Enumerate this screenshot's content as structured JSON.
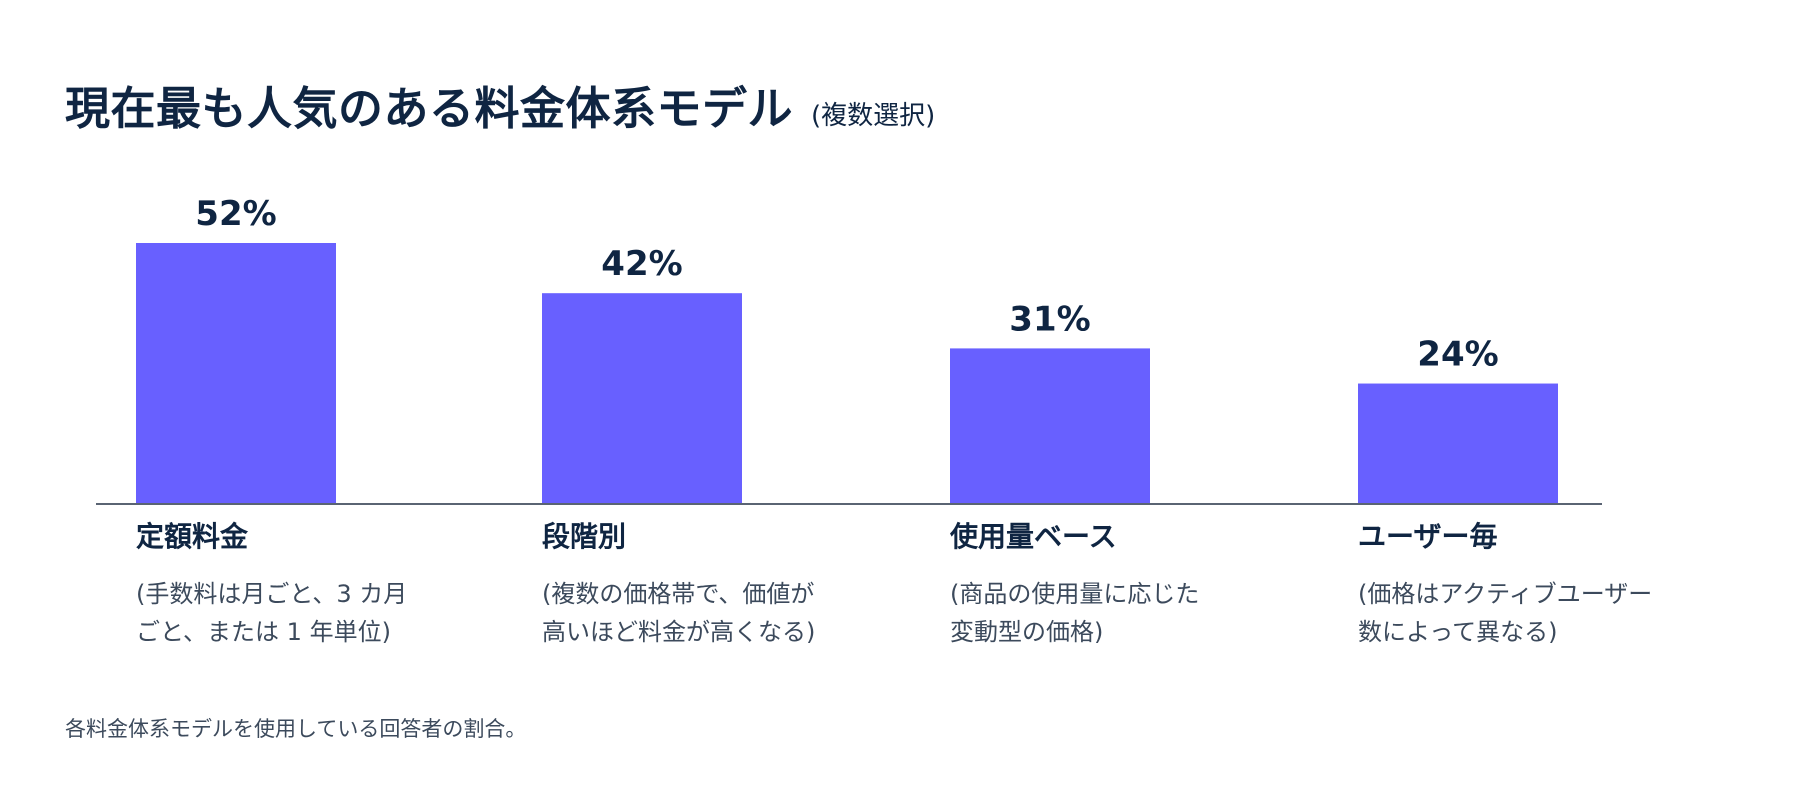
{
  "header": {
    "title": "現在最も人気のある料金体系モデル",
    "subtitle": "(複数選択)"
  },
  "chart_data": {
    "type": "bar",
    "categories": [
      "定額料金",
      "段階別",
      "使用量ベース",
      "ユーザー毎"
    ],
    "descriptions": [
      [
        "(手数料は月ごと、3 カ月",
        "ごと、または 1 年単位)"
      ],
      [
        "(複数の価格帯で、価値が",
        "高いほど料金が高くなる)"
      ],
      [
        "(商品の使用量に応じた",
        "変動型の価格)"
      ],
      [
        "(価格はアクティブユーザー",
        "数によって異なる)"
      ]
    ],
    "values": [
      52,
      42,
      31,
      24
    ],
    "value_labels": [
      "52%",
      "42%",
      "31%",
      "24%"
    ],
    "ylim": [
      0,
      52
    ],
    "grid": false,
    "bar_color": "#6860ff",
    "axis_color": "#5a6473"
  },
  "footnote": "各料金体系モデルを使用している回答者の割合。"
}
